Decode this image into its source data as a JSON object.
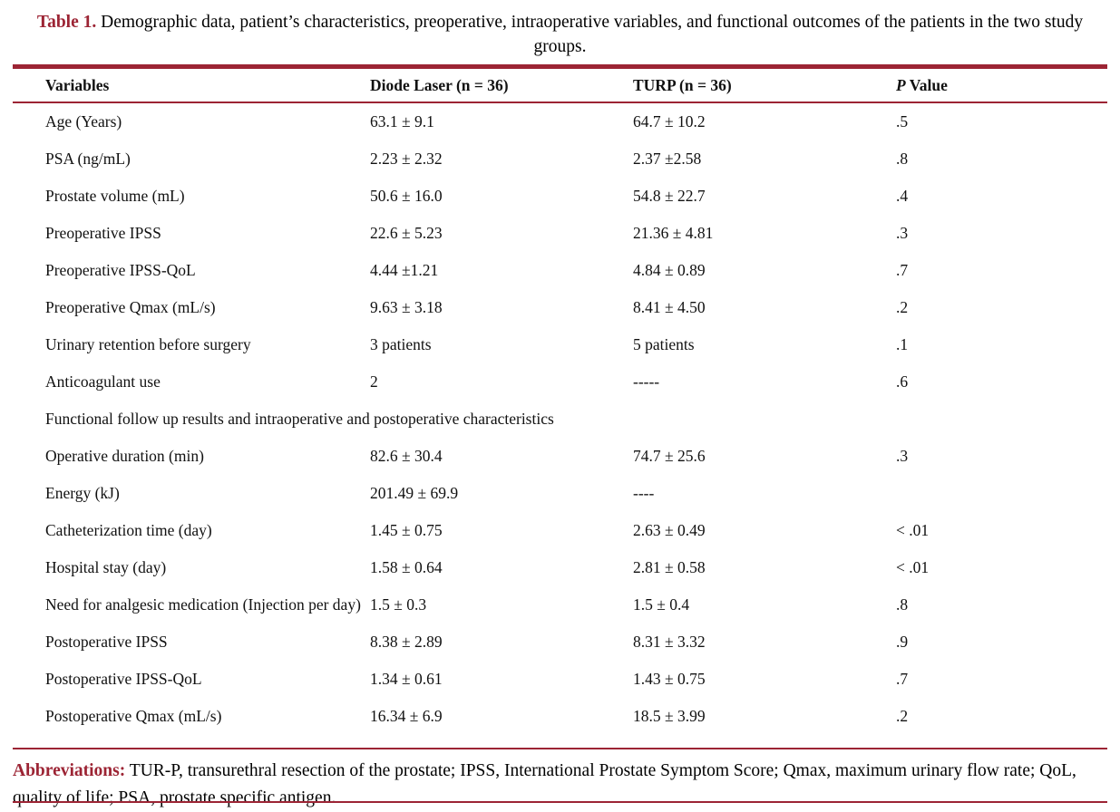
{
  "colors": {
    "accent": "#9c2434",
    "text": "#111111"
  },
  "title": {
    "label": "Table 1.",
    "text": " Demographic data, patient’s characteristics, preoperative, intraoperative variables, and functional outcomes of the patients in the two study groups."
  },
  "table": {
    "columns": {
      "variables": "Variables",
      "diode": "Diode Laser (n = 36)",
      "turp": "TURP (n = 36)",
      "p_italic": "P",
      "p_rest": " Value"
    },
    "rows": [
      {
        "variable": "Age (Years)",
        "diode": "63.1 ± 9.1",
        "turp": "64.7 ± 10.2",
        "p": ".5"
      },
      {
        "variable": "PSA (ng/mL)",
        "diode": "2.23 ± 2.32",
        "turp": "2.37 ±2.58",
        "p": ".8"
      },
      {
        "variable": "Prostate volume (mL)",
        "diode": "50.6 ± 16.0",
        "turp": "54.8 ± 22.7",
        "p": ".4"
      },
      {
        "variable": "Preoperative IPSS",
        "diode": "22.6 ± 5.23",
        "turp": "21.36 ± 4.81",
        "p": ".3"
      },
      {
        "variable": "Preoperative IPSS-QoL",
        "diode": "4.44 ±1.21",
        "turp": "4.84 ± 0.89",
        "p": ".7"
      },
      {
        "variable": "Preoperative Qmax (mL/s)",
        "diode": "9.63 ± 3.18",
        "turp": "8.41 ± 4.50",
        "p": ".2"
      },
      {
        "variable": "Urinary retention before surgery",
        "diode": "3 patients",
        "turp": "5 patients",
        "p": ".1"
      },
      {
        "variable": "Anticoagulant use",
        "diode": "2",
        "turp": "-----",
        "p": ".6"
      },
      {
        "section": "Functional follow up results and intraoperative and postoperative characteristics"
      },
      {
        "variable": "Operative duration (min)",
        "diode": "82.6 ± 30.4",
        "turp": "74.7 ± 25.6",
        "p": ".3"
      },
      {
        "variable": "Energy (kJ)",
        "diode": "201.49 ± 69.9",
        "turp": "----",
        "p": ""
      },
      {
        "variable": "Catheterization time (day)",
        "diode": "1.45 ± 0.75",
        "turp": "2.63 ± 0.49",
        "p": "< .01"
      },
      {
        "variable": "Hospital stay (day)",
        "diode": "1.58 ± 0.64",
        "turp": "2.81 ± 0.58",
        "p": "< .01"
      },
      {
        "variable": "Need for analgesic medication (Injection per day)",
        "diode": "1.5 ± 0.3",
        "turp": "1.5 ± 0.4",
        "p": ".8"
      },
      {
        "variable": "Postoperative IPSS",
        "diode": "8.38 ± 2.89",
        "turp": "8.31 ± 3.32",
        "p": ".9"
      },
      {
        "variable": "Postoperative IPSS-QoL",
        "diode": "1.34 ± 0.61",
        "turp": "1.43 ± 0.75",
        "p": ".7"
      },
      {
        "variable": "Postoperative Qmax (mL/s)",
        "diode": "16.34 ± 6.9",
        "turp": "18.5 ± 3.99",
        "p": ".2"
      }
    ]
  },
  "footnote": {
    "label": "Abbreviations:",
    "text": " TUR-P, transurethral resection of the prostate; IPSS, International Prostate Symptom Score; Qmax, maximum urinary flow rate; QoL, quality of life; PSA, prostate specific antigen."
  }
}
